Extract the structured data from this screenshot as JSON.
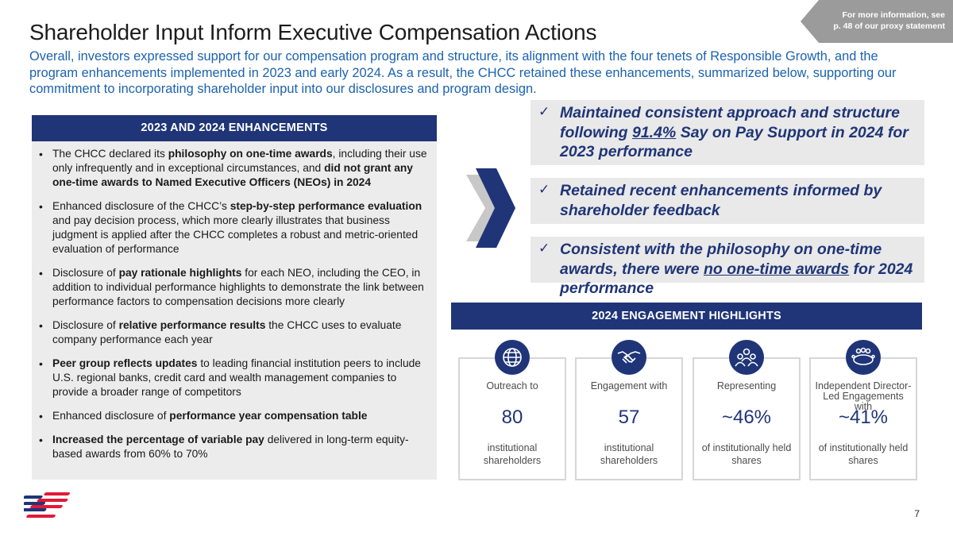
{
  "corner_note": {
    "line1": "For more information, see",
    "line2": "p. 48 of our proxy statement"
  },
  "title": "Shareholder Input Inform Executive Compensation Actions",
  "intro": "Overall, investors expressed support for our compensation program and structure, its alignment with the four tenets of Responsible Growth, and the program enhancements implemented in 2023 and early 2024. As a result, the CHCC retained these enhancements, summarized below, supporting our commitment to incorporating shareholder input into our disclosures and program design.",
  "enhancements": {
    "header": "2023 AND 2024 ENHANCEMENTS",
    "bullets": [
      {
        "parts": [
          {
            "t": "The CHCC declared its ",
            "b": false
          },
          {
            "t": "philosophy on one-time awards",
            "b": true
          },
          {
            "t": ", including their use only infrequently and in exceptional circumstances, and ",
            "b": false
          },
          {
            "t": "did not grant any one-time awards to Named Executive Officers (NEOs) in 2024",
            "b": true
          }
        ]
      },
      {
        "parts": [
          {
            "t": "Enhanced disclosure of the CHCC’s ",
            "b": false
          },
          {
            "t": "step-by-step performance evaluation",
            "b": true
          },
          {
            "t": " and pay decision process, which more clearly illustrates that business judgment is applied after the CHCC completes a robust and metric-oriented evaluation of performance",
            "b": false
          }
        ]
      },
      {
        "parts": [
          {
            "t": "Disclosure of ",
            "b": false
          },
          {
            "t": "pay rationale highlights",
            "b": true
          },
          {
            "t": " for each NEO, including the CEO, in addition to individual performance highlights to demonstrate the link between performance factors to compensation decisions more clearly",
            "b": false
          }
        ]
      },
      {
        "parts": [
          {
            "t": "Disclosure of ",
            "b": false
          },
          {
            "t": "relative performance results",
            "b": true
          },
          {
            "t": " the CHCC uses to evaluate company performance each year",
            "b": false
          }
        ]
      },
      {
        "parts": [
          {
            "t": "Peer group reflects updates",
            "b": true
          },
          {
            "t": " to leading financial institution peers to include U.S. regional banks, credit card and wealth management companies to provide a broader range of competitors",
            "b": false
          }
        ]
      },
      {
        "parts": [
          {
            "t": "Enhanced disclosure of ",
            "b": false
          },
          {
            "t": "performance year compensation table",
            "b": true
          }
        ]
      },
      {
        "parts": [
          {
            "t": "Increased the percentage of variable pay",
            "b": true
          },
          {
            "t": " delivered in long-term equity-based awards from 60% to 70%",
            "b": false
          }
        ]
      }
    ]
  },
  "callouts": [
    {
      "check": "✓",
      "pre": "Maintained consistent approach and structure following ",
      "underline": "91.4%",
      "post": " Say on Pay Support in 2024 for 2023 performance"
    },
    {
      "check": "✓",
      "pre": "Retained recent enhancements informed by shareholder feedback",
      "underline": "",
      "post": ""
    },
    {
      "check": "✓",
      "pre": "Consistent with the philosophy on one-time awards, there were ",
      "underline": "no one-time awards",
      "post": " for 2024 performance"
    }
  ],
  "engagement": {
    "header": "2024 ENGAGEMENT HIGHLIGHTS",
    "cards": [
      {
        "icon": "globe-icon",
        "label": "Outreach to",
        "value": "80",
        "sub": "institutional shareholders"
      },
      {
        "icon": "handshake-icon",
        "label": "Engagement with",
        "value": "57",
        "sub": "institutional shareholders"
      },
      {
        "icon": "people-group-icon",
        "label": "Representing",
        "value": "~46%",
        "sub": "of institutionally held shares"
      },
      {
        "icon": "meeting-table-icon",
        "label": "Independent Director-Led Engagements with",
        "value": "~41%",
        "sub": "of institutionally held shares"
      }
    ]
  },
  "page_number": "7",
  "colors": {
    "navy": "#1f3578",
    "intro_blue": "#1b62b0",
    "panel_gray": "#ececec",
    "logo_red": "#e31837"
  }
}
